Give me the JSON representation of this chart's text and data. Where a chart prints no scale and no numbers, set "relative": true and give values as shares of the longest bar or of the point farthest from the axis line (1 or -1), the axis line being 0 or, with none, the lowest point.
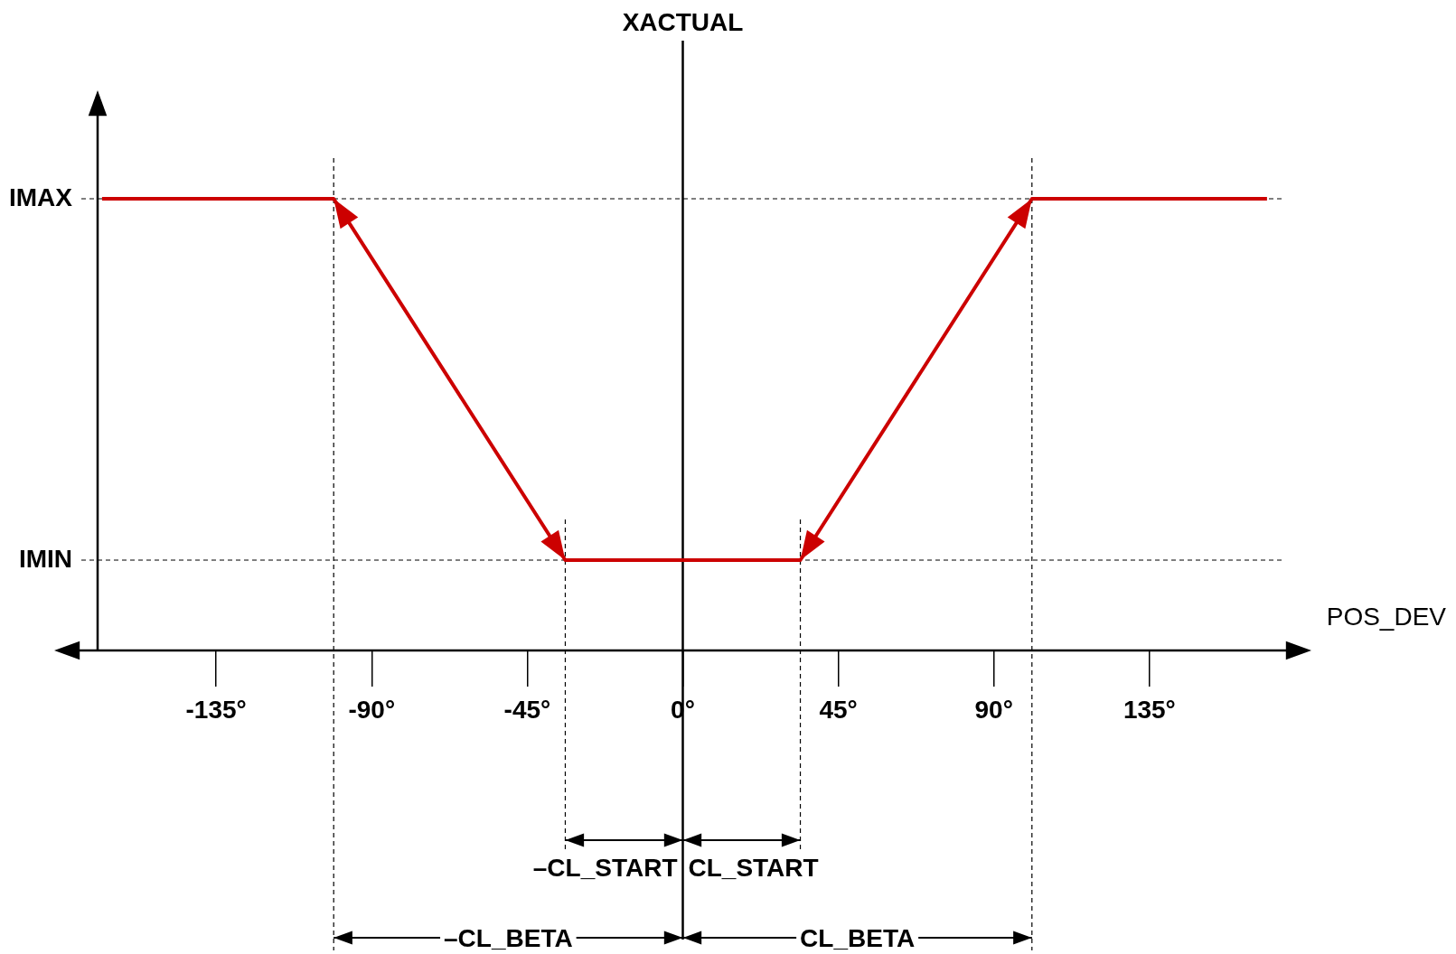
{
  "chart_data": {
    "type": "line",
    "relative": true,
    "xlabel": "POS_DEV",
    "x": [
      -168,
      -101,
      -34,
      34,
      101,
      169
    ],
    "series": [
      {
        "color": "#cc0000",
        "values": [
          1,
          1,
          0.2,
          0.2,
          1,
          1
        ]
      }
    ],
    "xlim": [
      -174,
      174
    ],
    "xticks": [
      {
        "value": -135,
        "label": "-135°"
      },
      {
        "value": -90,
        "label": "-90°"
      },
      {
        "value": -45,
        "label": "-45°"
      },
      {
        "value": 0,
        "label": "0°"
      },
      {
        "value": 45,
        "label": "45°"
      },
      {
        "value": 90,
        "label": "90°"
      },
      {
        "value": 135,
        "label": "135°"
      }
    ],
    "ref_lines": [
      {
        "axis": "y",
        "value": 1,
        "label": "IMAX",
        "line_style": "dashed"
      },
      {
        "axis": "y",
        "value": 0.2,
        "label": "IMIN",
        "line_style": "dashed"
      },
      {
        "axis": "x",
        "value": 0,
        "label": "XACTUAL",
        "line_style": "solid"
      },
      {
        "axis": "x",
        "value": -101,
        "line_style": "dashed"
      },
      {
        "axis": "x",
        "value": -34,
        "line_style": "dashed"
      },
      {
        "axis": "x",
        "value": 34,
        "line_style": "dashed"
      },
      {
        "axis": "x",
        "value": 101,
        "line_style": "dashed"
      }
    ],
    "annotations": [
      "–CL_START",
      "CL_START",
      "–CL_BETA",
      "CL_BETA"
    ],
    "grid": false,
    "legend": false,
    "marker": "none",
    "line_style": "solid"
  }
}
